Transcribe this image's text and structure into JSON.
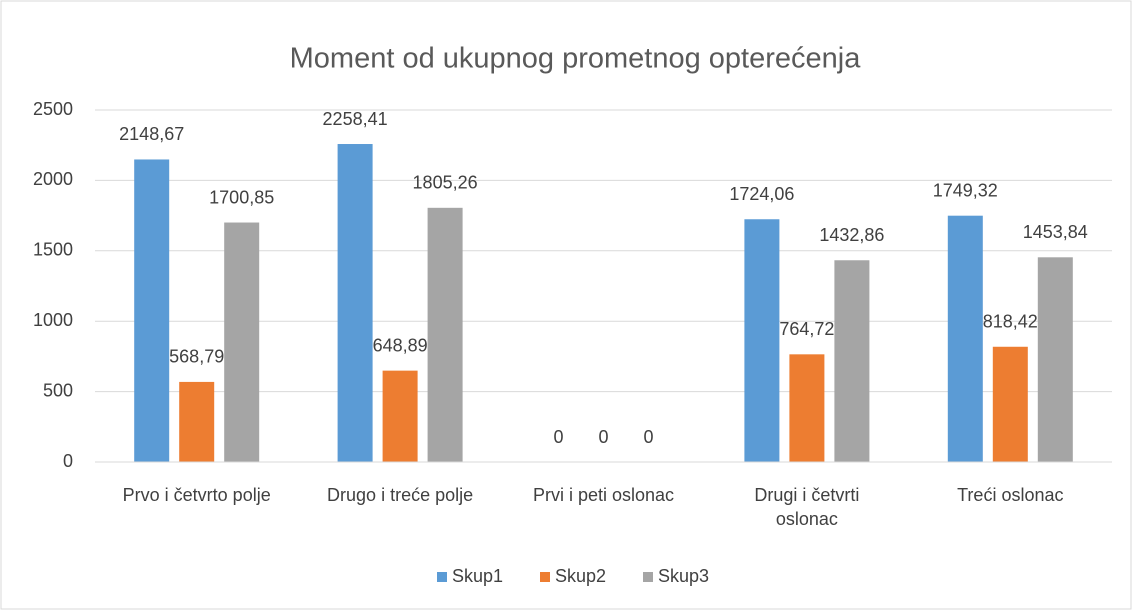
{
  "chart_data": {
    "type": "bar",
    "title": "Moment od ukupnog prometnog opterećenja",
    "categories": [
      "Prvo i četvrto polje",
      "Drugo i treće polje",
      "Prvi i peti oslonac",
      "Drugi i četvrti oslonac",
      "Treći oslonac"
    ],
    "series": [
      {
        "name": "Skup1",
        "color": "#5b9bd5",
        "values": [
          2148.67,
          2258.41,
          0,
          1724.06,
          1749.32
        ],
        "value_labels": [
          "2148,67",
          "2258,41",
          "0",
          "1724,06",
          "1749,32"
        ]
      },
      {
        "name": "Skup2",
        "color": "#ed7d31",
        "values": [
          568.79,
          648.89,
          0,
          764.72,
          818.42
        ],
        "value_labels": [
          "568,79",
          "648,89",
          "0",
          "764,72",
          "818,42"
        ]
      },
      {
        "name": "Skup3",
        "color": "#a5a5a5",
        "values": [
          1700.85,
          1805.26,
          0,
          1432.86,
          1453.84
        ],
        "value_labels": [
          "1700,85",
          "1805,26",
          "0",
          "1432,86",
          "1453,84"
        ]
      }
    ],
    "ylim": [
      0,
      2500
    ],
    "yticks": [
      0,
      500,
      1000,
      1500,
      2000,
      2500
    ],
    "grid": true,
    "legend": "bottom"
  }
}
